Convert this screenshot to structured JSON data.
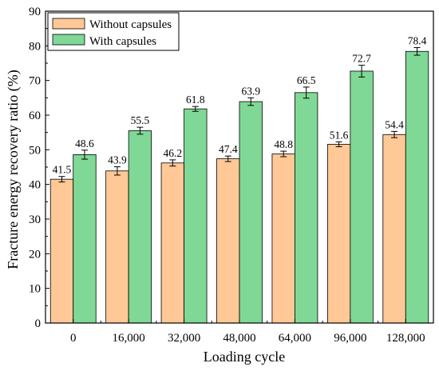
{
  "chart_data": {
    "type": "bar",
    "categories": [
      "0",
      "16,000",
      "32,000",
      "48,000",
      "64,000",
      "96,000",
      "128,000"
    ],
    "series": [
      {
        "name": "Without capsules",
        "values": [
          41.5,
          43.9,
          46.2,
          47.4,
          48.8,
          51.6,
          54.4
        ],
        "errors": [
          0.8,
          1.2,
          0.9,
          0.8,
          0.8,
          0.7,
          0.9
        ],
        "labels": [
          "41.5",
          "43.9",
          "46.2",
          "47.4",
          "48.8",
          "51.6",
          "54.4"
        ],
        "color": "#FFC896"
      },
      {
        "name": "With capsules",
        "values": [
          48.6,
          55.5,
          61.8,
          63.9,
          66.5,
          72.7,
          78.4
        ],
        "errors": [
          1.3,
          1.0,
          0.7,
          1.1,
          1.6,
          1.7,
          1.1
        ],
        "labels": [
          "48.6",
          "55.5",
          "61.8",
          "63.9",
          "66.5",
          "72.7",
          "78.4"
        ],
        "color": "#7FD896"
      }
    ],
    "title": "",
    "xlabel": "Loading cycle",
    "ylabel": "Fracture energy recovery ratio (%)",
    "ylim": [
      0,
      90
    ],
    "yticks": [
      "0",
      "10",
      "20",
      "30",
      "40",
      "50",
      "60",
      "70",
      "80",
      "90"
    ],
    "grid": false,
    "legend_position": "top-left"
  }
}
